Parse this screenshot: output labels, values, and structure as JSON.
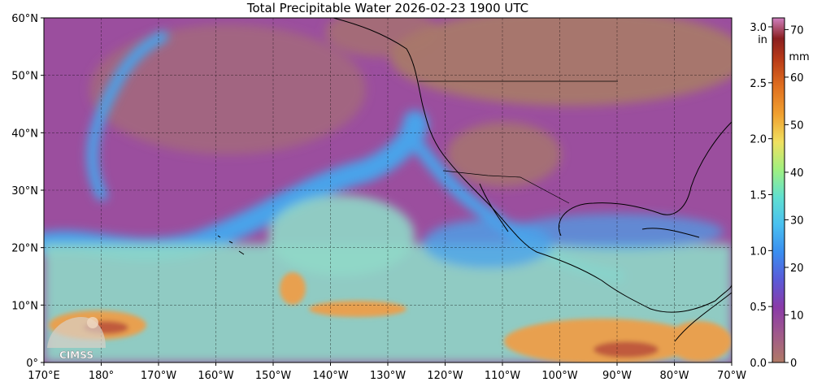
{
  "title": "Total Precipitable Water  2026-02-23 1900 UTC",
  "map": {
    "lat_labels": [
      "60°N",
      "50°N",
      "40°N",
      "30°N",
      "20°N",
      "10°N",
      "0°"
    ],
    "lon_labels": [
      "170°E",
      "180°",
      "170°W",
      "160°W",
      "150°W",
      "140°W",
      "130°W",
      "120°W",
      "110°W",
      "100°W",
      "90°W",
      "80°W",
      "70°W"
    ],
    "logo_text": "CIMSS",
    "colors": {
      "very_dry": "#a8786a",
      "dry": "#9b4e9e",
      "moderate": "#4aa3ea",
      "moist": "#8fd8c8",
      "wet": "#e8a050",
      "very_wet": "#c05a3c"
    }
  },
  "colorbar": {
    "in_unit": "in",
    "mm_unit": "mm",
    "in_ticks": [
      "0.0",
      "0.5",
      "1.0",
      "1.5",
      "2.0",
      "2.5",
      "3.0"
    ],
    "mm_ticks": [
      "0",
      "10",
      "20",
      "30",
      "40",
      "50",
      "60",
      "70"
    ]
  }
}
